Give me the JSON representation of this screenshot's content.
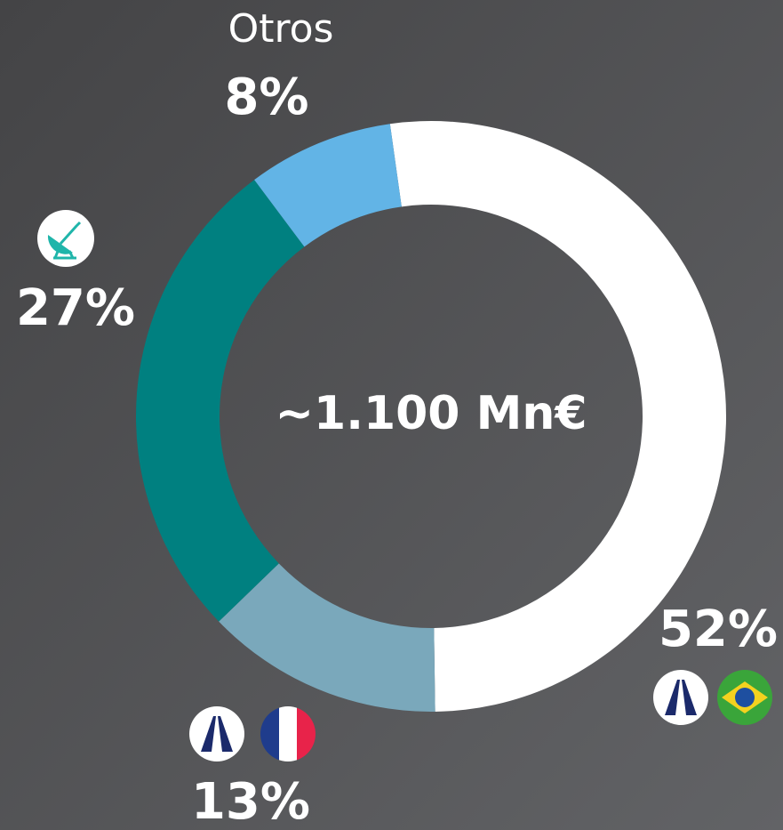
{
  "chart_data": {
    "type": "pie",
    "donut": true,
    "center_label": "~1.100 Mn€",
    "categories": [
      null,
      null,
      null,
      "Otros"
    ],
    "values": [
      52,
      13,
      27,
      8
    ],
    "value_labels": [
      "52%",
      "13%",
      "27%",
      "8%"
    ],
    "colors": [
      "#ffffff",
      "#7aa8bb",
      "#008080",
      "#62b4e6"
    ]
  }
}
